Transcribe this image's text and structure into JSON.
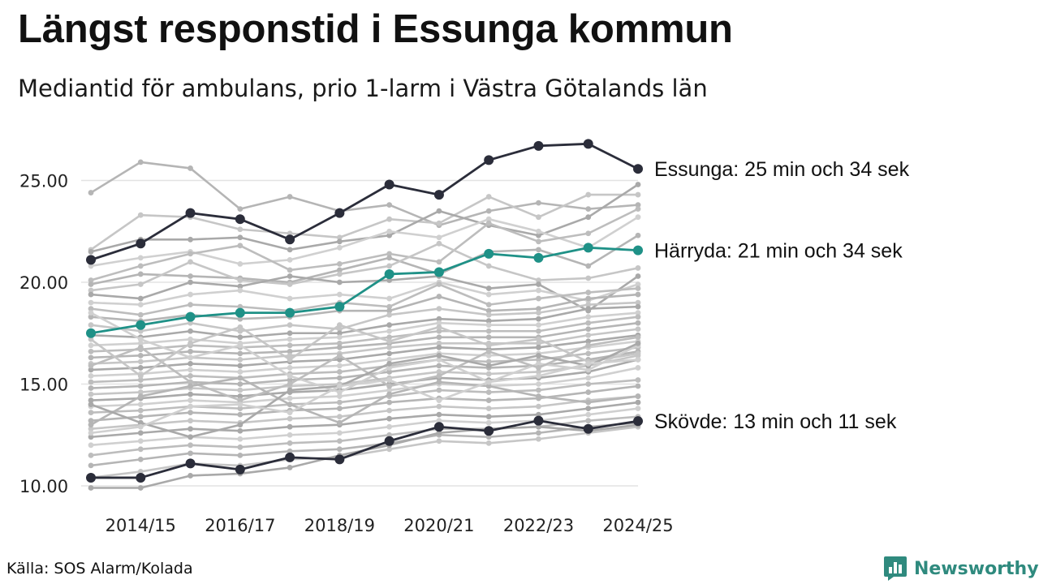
{
  "header": {
    "title": "Längst responstid i Essunga kommun",
    "subtitle": "Mediantid för ambulans, prio 1-larm i Västra Götalands län"
  },
  "footer": {
    "source": "Källa: SOS Alarm/Kolada",
    "brand": "Newsworthy",
    "brand_icon": "bar-chart-speech-bubble-icon"
  },
  "colors": {
    "highlight": "#2b2d3a",
    "accent": "#1f9187",
    "background_lines": [
      "#b5b5b5",
      "#c6c6c6",
      "#a9a9a9",
      "#d0d0d0",
      "#bdbdbd"
    ],
    "grid": "#e3e3e3",
    "brand": "#2f8a7e"
  },
  "chart_data": {
    "type": "line",
    "title": "Längst responstid i Essunga kommun",
    "subtitle": "Mediantid för ambulans, prio 1-larm i Västra Götalands län",
    "xlabel": "",
    "ylabel": "",
    "x": [
      "2013/14",
      "2014/15",
      "2015/16",
      "2016/17",
      "2017/18",
      "2018/19",
      "2019/20",
      "2020/21",
      "2021/22",
      "2022/23",
      "2023/24",
      "2024/25"
    ],
    "x_tick_labels": [
      "2014/15",
      "2016/17",
      "2018/19",
      "2020/21",
      "2022/23",
      "2024/25"
    ],
    "y_ticks": [
      "10.00",
      "15.00",
      "20.00",
      "25.00"
    ],
    "ylim": [
      10,
      27
    ],
    "grid": "horizontal",
    "highlighted_series": [
      {
        "name": "Essunga",
        "label": "Essunga: 25 min och 34 sek",
        "color": "#2b2d3a",
        "values": [
          21.1,
          21.9,
          23.4,
          23.1,
          22.1,
          23.4,
          24.8,
          24.3,
          26.0,
          26.7,
          26.8,
          25.57
        ]
      },
      {
        "name": "Härryda",
        "label": "Härryda: 21 min och 34 sek",
        "color": "#1f9187",
        "values": [
          17.5,
          17.9,
          18.3,
          18.5,
          18.5,
          18.8,
          20.4,
          20.5,
          21.4,
          21.2,
          21.7,
          21.57
        ]
      },
      {
        "name": "Skövde",
        "label": "Skövde: 13 min och 11 sek",
        "color": "#2b2d3a",
        "values": [
          10.4,
          10.4,
          11.1,
          10.8,
          11.4,
          11.3,
          12.2,
          12.9,
          12.7,
          13.2,
          12.8,
          13.18
        ]
      }
    ],
    "background_series": [
      {
        "values": [
          24.4,
          25.9,
          25.6,
          23.6,
          24.2,
          23.5,
          23.8,
          22.8,
          23.5,
          23.9,
          23.6,
          23.8
        ]
      },
      {
        "values": [
          21.6,
          23.3,
          23.2,
          22.6,
          22.4,
          22.2,
          23.1,
          22.9,
          24.2,
          23.2,
          24.3,
          24.3
        ]
      },
      {
        "values": [
          21.5,
          22.1,
          22.1,
          22.2,
          21.6,
          22.0,
          22.3,
          23.5,
          22.8,
          22.3,
          23.2,
          24.8
        ]
      },
      {
        "values": [
          20.8,
          21.2,
          21.5,
          20.9,
          21.1,
          21.7,
          22.5,
          22.2,
          23.1,
          22.5,
          21.7,
          23.2
        ]
      },
      {
        "values": [
          20.1,
          20.8,
          21.4,
          21.8,
          20.6,
          20.9,
          21.4,
          21.0,
          22.9,
          22.0,
          22.4,
          23.6
        ]
      },
      {
        "values": [
          19.9,
          20.4,
          20.3,
          20.2,
          20.0,
          20.6,
          21.2,
          20.4,
          21.5,
          21.6,
          20.8,
          22.3
        ]
      },
      {
        "values": [
          19.6,
          19.9,
          21.0,
          20.1,
          19.9,
          20.4,
          20.8,
          21.9,
          20.8,
          20.1,
          20.2,
          20.7
        ]
      },
      {
        "values": [
          19.4,
          19.2,
          20.0,
          19.8,
          20.3,
          20.0,
          20.1,
          20.3,
          19.7,
          19.9,
          18.6,
          20.3
        ]
      },
      {
        "values": [
          19.0,
          18.9,
          19.4,
          19.6,
          19.2,
          19.4,
          19.2,
          20.0,
          19.4,
          19.6,
          19.1,
          19.9
        ]
      },
      {
        "values": [
          18.7,
          18.4,
          18.9,
          18.8,
          18.6,
          19.0,
          18.8,
          19.9,
          18.9,
          19.2,
          19.5,
          19.7
        ]
      },
      {
        "values": [
          18.3,
          18.1,
          18.4,
          18.2,
          18.3,
          18.6,
          18.6,
          19.3,
          18.6,
          18.7,
          19.2,
          19.4
        ]
      },
      {
        "values": [
          17.9,
          17.6,
          18.0,
          17.6,
          17.9,
          17.7,
          18.4,
          18.7,
          18.4,
          18.5,
          18.9,
          19.0
        ]
      },
      {
        "values": [
          17.4,
          17.3,
          17.6,
          17.3,
          17.5,
          17.5,
          17.9,
          18.2,
          18.1,
          18.2,
          18.7,
          18.8
        ]
      },
      {
        "values": [
          16.9,
          17.0,
          17.2,
          17.0,
          17.2,
          17.3,
          17.6,
          18.0,
          17.9,
          17.9,
          18.3,
          18.5
        ]
      },
      {
        "values": [
          16.6,
          16.7,
          16.9,
          16.8,
          16.9,
          17.0,
          17.3,
          17.6,
          17.6,
          17.6,
          18.0,
          18.3
        ]
      },
      {
        "values": [
          16.3,
          16.4,
          16.6,
          16.5,
          16.6,
          16.8,
          17.0,
          17.3,
          17.3,
          17.3,
          17.7,
          18.0
        ]
      },
      {
        "values": [
          16.0,
          16.1,
          16.3,
          16.2,
          16.4,
          16.5,
          16.8,
          17.0,
          17.0,
          17.0,
          17.4,
          17.7
        ]
      },
      {
        "values": [
          15.7,
          15.8,
          16.0,
          15.9,
          16.1,
          16.2,
          16.5,
          16.8,
          16.7,
          16.8,
          17.1,
          17.4
        ]
      },
      {
        "values": [
          15.4,
          15.5,
          15.7,
          15.6,
          15.8,
          15.9,
          16.2,
          16.5,
          16.4,
          16.5,
          16.8,
          17.1
        ]
      },
      {
        "values": [
          15.1,
          15.2,
          15.4,
          15.3,
          15.5,
          15.6,
          15.9,
          16.2,
          16.1,
          16.2,
          16.5,
          16.8
        ]
      },
      {
        "values": [
          14.8,
          14.9,
          15.1,
          15.0,
          15.2,
          15.3,
          15.6,
          15.9,
          15.8,
          15.9,
          16.2,
          16.6
        ]
      },
      {
        "values": [
          14.5,
          14.6,
          14.8,
          14.7,
          14.9,
          15.0,
          15.3,
          15.6,
          15.5,
          15.6,
          15.9,
          16.4
        ]
      },
      {
        "values": [
          14.2,
          14.3,
          14.5,
          14.4,
          14.6,
          14.7,
          15.0,
          15.3,
          15.2,
          15.3,
          15.6,
          16.2
        ]
      },
      {
        "values": [
          13.9,
          14.0,
          14.2,
          14.1,
          14.3,
          14.4,
          14.7,
          15.0,
          14.9,
          15.0,
          15.3,
          15.8
        ]
      },
      {
        "values": [
          13.6,
          13.7,
          13.9,
          13.8,
          14.0,
          14.1,
          14.4,
          14.7,
          14.6,
          14.7,
          15.0,
          15.2
        ]
      },
      {
        "values": [
          13.2,
          13.4,
          13.6,
          13.5,
          13.7,
          13.8,
          14.1,
          14.3,
          14.2,
          14.3,
          14.6,
          14.9
        ]
      },
      {
        "values": [
          12.8,
          13.0,
          13.2,
          13.1,
          13.3,
          13.4,
          13.7,
          13.9,
          13.8,
          13.9,
          14.2,
          14.4
        ]
      },
      {
        "values": [
          12.4,
          12.6,
          12.8,
          12.7,
          12.9,
          13.0,
          13.3,
          13.5,
          13.4,
          13.5,
          13.8,
          14.1
        ]
      },
      {
        "values": [
          12.0,
          12.2,
          12.4,
          12.3,
          12.5,
          12.6,
          12.9,
          13.2,
          13.1,
          13.2,
          13.5,
          13.8
        ]
      },
      {
        "values": [
          11.5,
          11.8,
          12.0,
          11.9,
          12.1,
          12.2,
          12.5,
          12.8,
          12.8,
          12.9,
          13.2,
          13.4
        ]
      },
      {
        "values": [
          11.0,
          11.3,
          11.6,
          11.5,
          11.7,
          11.8,
          12.1,
          12.5,
          12.4,
          12.6,
          12.9,
          13.1
        ]
      },
      {
        "values": [
          10.4,
          10.7,
          11.1,
          11.0,
          11.3,
          11.4,
          11.8,
          12.2,
          12.1,
          12.3,
          12.6,
          12.9
        ]
      },
      {
        "values": [
          9.9,
          9.9,
          10.5,
          10.6,
          10.9,
          11.5,
          12.0,
          12.6,
          12.8,
          12.9,
          12.7,
          13.0
        ]
      },
      {
        "values": [
          18.5,
          17.2,
          16.3,
          16.9,
          15.4,
          14.6,
          15.8,
          16.2,
          15.1,
          16.0,
          15.7,
          16.9
        ]
      },
      {
        "values": [
          15.9,
          16.8,
          15.1,
          14.2,
          15.0,
          16.4,
          14.9,
          15.4,
          16.6,
          15.8,
          16.9,
          17.3
        ]
      },
      {
        "values": [
          13.0,
          14.4,
          14.9,
          15.3,
          14.0,
          13.1,
          14.5,
          15.1,
          14.9,
          14.4,
          14.1,
          14.4
        ]
      },
      {
        "values": [
          17.2,
          15.4,
          17.0,
          17.8,
          16.2,
          17.9,
          17.1,
          17.8,
          16.9,
          17.2,
          16.1,
          16.5
        ]
      },
      {
        "values": [
          14.0,
          13.1,
          12.4,
          13.0,
          14.7,
          14.9,
          16.0,
          16.4,
          15.9,
          16.4,
          15.9,
          17.0
        ]
      },
      {
        "values": [
          12.6,
          12.9,
          13.9,
          14.0,
          13.6,
          14.9,
          15.2,
          14.2,
          15.1,
          15.4,
          16.0,
          16.2
        ]
      }
    ]
  }
}
